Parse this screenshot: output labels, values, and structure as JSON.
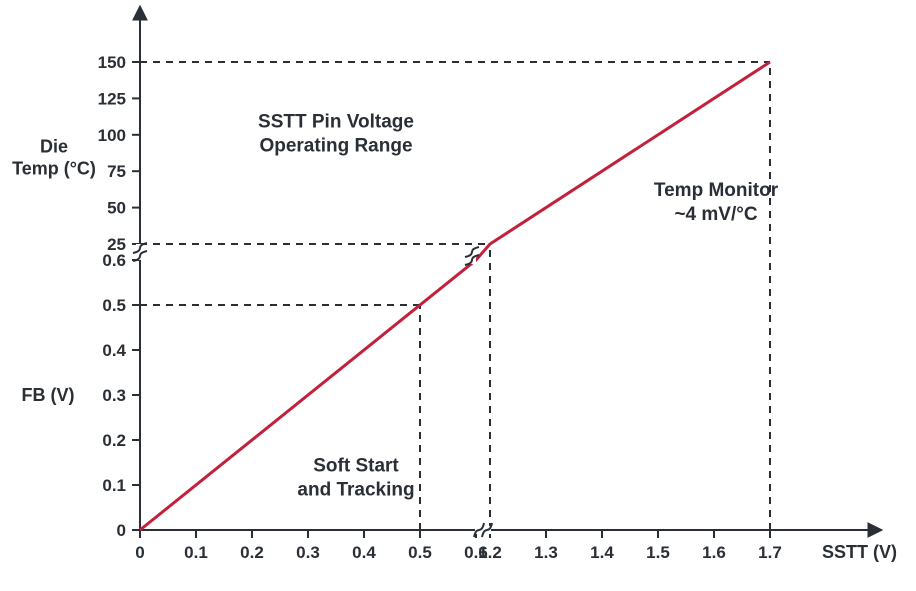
{
  "chart": {
    "type": "line",
    "background_color": "#ffffff",
    "axis_color": "#2a2f36",
    "text_color": "#2a2f36",
    "line_color": "#c2203b",
    "line_width": 3,
    "dash_pattern": "7 6",
    "font_family": "Arial, Helvetica, sans-serif",
    "tick_label_fontsize": 17,
    "axis_label_fontsize": 18,
    "annotation_fontsize": 19,
    "x": {
      "label": "SSTT (V)",
      "min": 0,
      "max": 1.7,
      "break_at": [
        0.6,
        1.2
      ],
      "ticks_left": [
        0,
        0.1,
        0.2,
        0.3,
        0.4,
        0.5,
        0.6
      ],
      "ticks_right": [
        1.2,
        1.3,
        1.4,
        1.5,
        1.6,
        1.7
      ]
    },
    "y_lower": {
      "label": "FB (V)",
      "min": 0,
      "max": 0.6,
      "ticks": [
        0,
        0.1,
        0.2,
        0.3,
        0.4,
        0.5,
        0.6
      ]
    },
    "y_upper": {
      "label_line1": "Die",
      "label_line2": "Temp (°C)",
      "min": 25,
      "max": 150,
      "ticks": [
        25,
        50,
        75,
        100,
        125,
        150
      ]
    },
    "series": {
      "points_data_domain": [
        [
          0,
          0
        ],
        [
          1.7,
          150
        ]
      ],
      "type": "linear"
    },
    "guides": [
      {
        "x": 0.5,
        "y_fb": 0.5
      },
      {
        "x": 1.2,
        "y_temp": 25
      },
      {
        "x": 1.7,
        "y_temp": 150
      }
    ],
    "annotations": {
      "top_title_line1": "SSTT Pin Voltage",
      "top_title_line2": "Operating Range",
      "right_label_line1": "Temp Monitor",
      "right_label_line2": "~4 mV/°C",
      "bottom_label_line1": "Soft Start",
      "bottom_label_line2": "and Tracking"
    }
  }
}
